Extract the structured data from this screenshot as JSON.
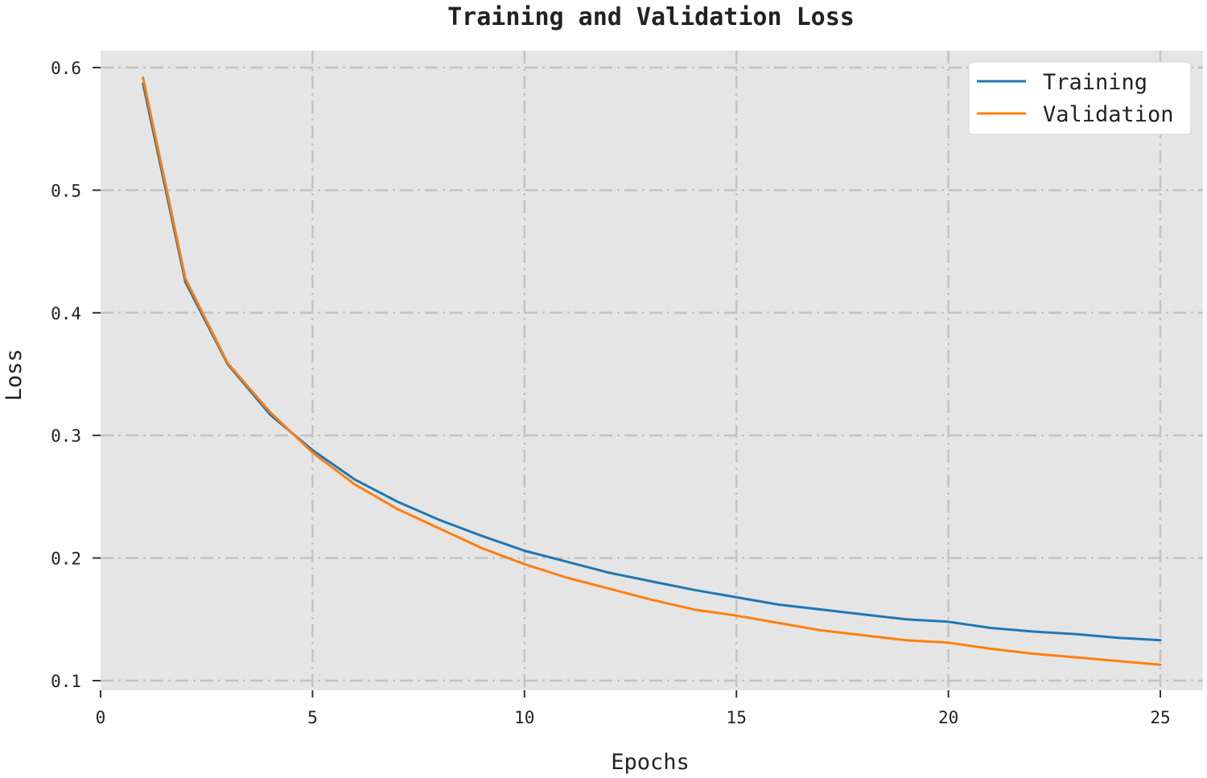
{
  "chart_data": {
    "type": "line",
    "title": "Training and Validation Loss",
    "xlabel": "Epochs",
    "ylabel": "Loss",
    "xlim": [
      0,
      26
    ],
    "ylim": [
      0.09,
      0.614
    ],
    "xticks": [
      0,
      5,
      10,
      15,
      20,
      25
    ],
    "yticks": [
      0.1,
      0.2,
      0.3,
      0.4,
      0.5,
      0.6
    ],
    "xtick_labels": [
      "0",
      "5",
      "10",
      "15",
      "20",
      "25"
    ],
    "ytick_labels": [
      "0.1",
      "0.2",
      "0.3",
      "0.4",
      "0.5",
      "0.6"
    ],
    "grid": true,
    "legend_position": "top-right",
    "x": [
      1,
      2,
      3,
      4,
      5,
      6,
      7,
      8,
      9,
      10,
      11,
      12,
      13,
      14,
      15,
      16,
      17,
      18,
      19,
      20,
      21,
      22,
      23,
      24,
      25
    ],
    "series": [
      {
        "name": "Training",
        "color": "#1f77b4",
        "values": [
          0.587,
          0.425,
          0.358,
          0.317,
          0.288,
          0.264,
          0.246,
          0.231,
          0.218,
          0.206,
          0.197,
          0.188,
          0.181,
          0.174,
          0.168,
          0.162,
          0.158,
          0.154,
          0.15,
          0.148,
          0.143,
          0.14,
          0.138,
          0.135,
          0.133
        ]
      },
      {
        "name": "Validation",
        "color": "#ff7f0e",
        "values": [
          0.592,
          0.428,
          0.359,
          0.319,
          0.286,
          0.26,
          0.24,
          0.224,
          0.208,
          0.195,
          0.184,
          0.175,
          0.166,
          0.158,
          0.153,
          0.147,
          0.141,
          0.137,
          0.133,
          0.131,
          0.126,
          0.122,
          0.119,
          0.116,
          0.113
        ]
      }
    ],
    "colors": {
      "plot_background": "#e5e5e5",
      "grid": "#c3c3c3"
    }
  }
}
